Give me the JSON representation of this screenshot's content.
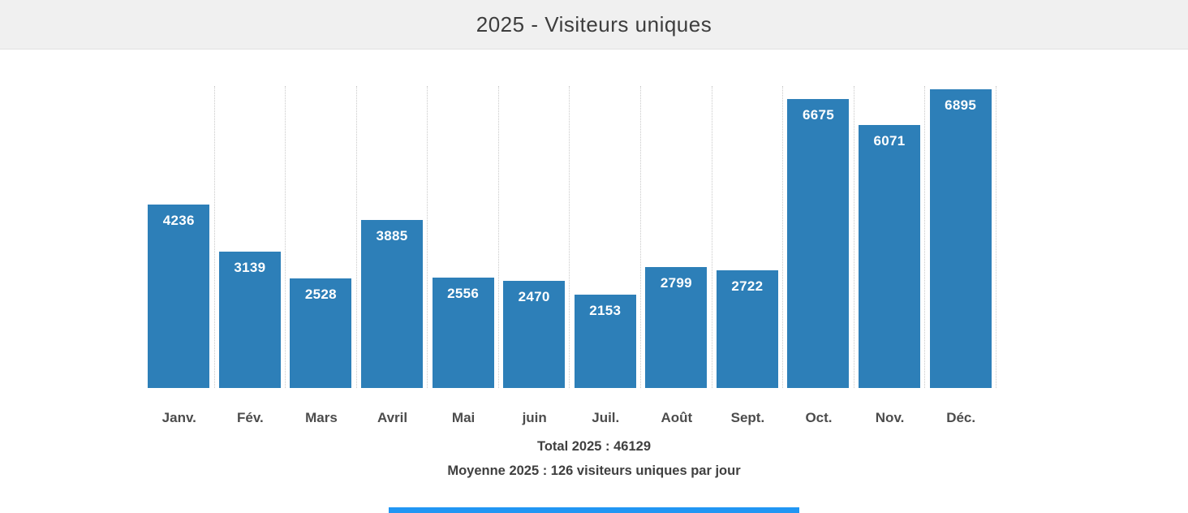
{
  "header": {
    "title": "2025 - Visiteurs uniques"
  },
  "chart_data": {
    "type": "bar",
    "title": "2025 - Visiteurs uniques",
    "categories": [
      "Janv.",
      "Fév.",
      "Mars",
      "Avril",
      "Mai",
      "juin",
      "Juil.",
      "Août",
      "Sept.",
      "Oct.",
      "Nov.",
      "Déc."
    ],
    "values": [
      4236,
      3139,
      2528,
      3885,
      2556,
      2470,
      2153,
      2799,
      2722,
      6675,
      6071,
      6895
    ],
    "xlabel": "",
    "ylabel": "",
    "ylim": [
      0,
      6969
    ],
    "grid": "vertical dotted separators between categories and at right edge, no horizontal gridlines, no y-axis",
    "legend": "none",
    "value_labels": "inside bar top, white bold",
    "bar_color": "#2d7fb8",
    "value_label_color": "#ffffff"
  },
  "summary": {
    "total": "Total 2025 : 46129",
    "average": "Moyenne 2025 : 126 visiteurs uniques par jour"
  },
  "colors": {
    "bar": "#2d7fb8",
    "header_bg": "#f0f0f0",
    "gridline": "#c9c9c9",
    "footer_bar": "#2196f3",
    "text_dark": "#404040"
  }
}
